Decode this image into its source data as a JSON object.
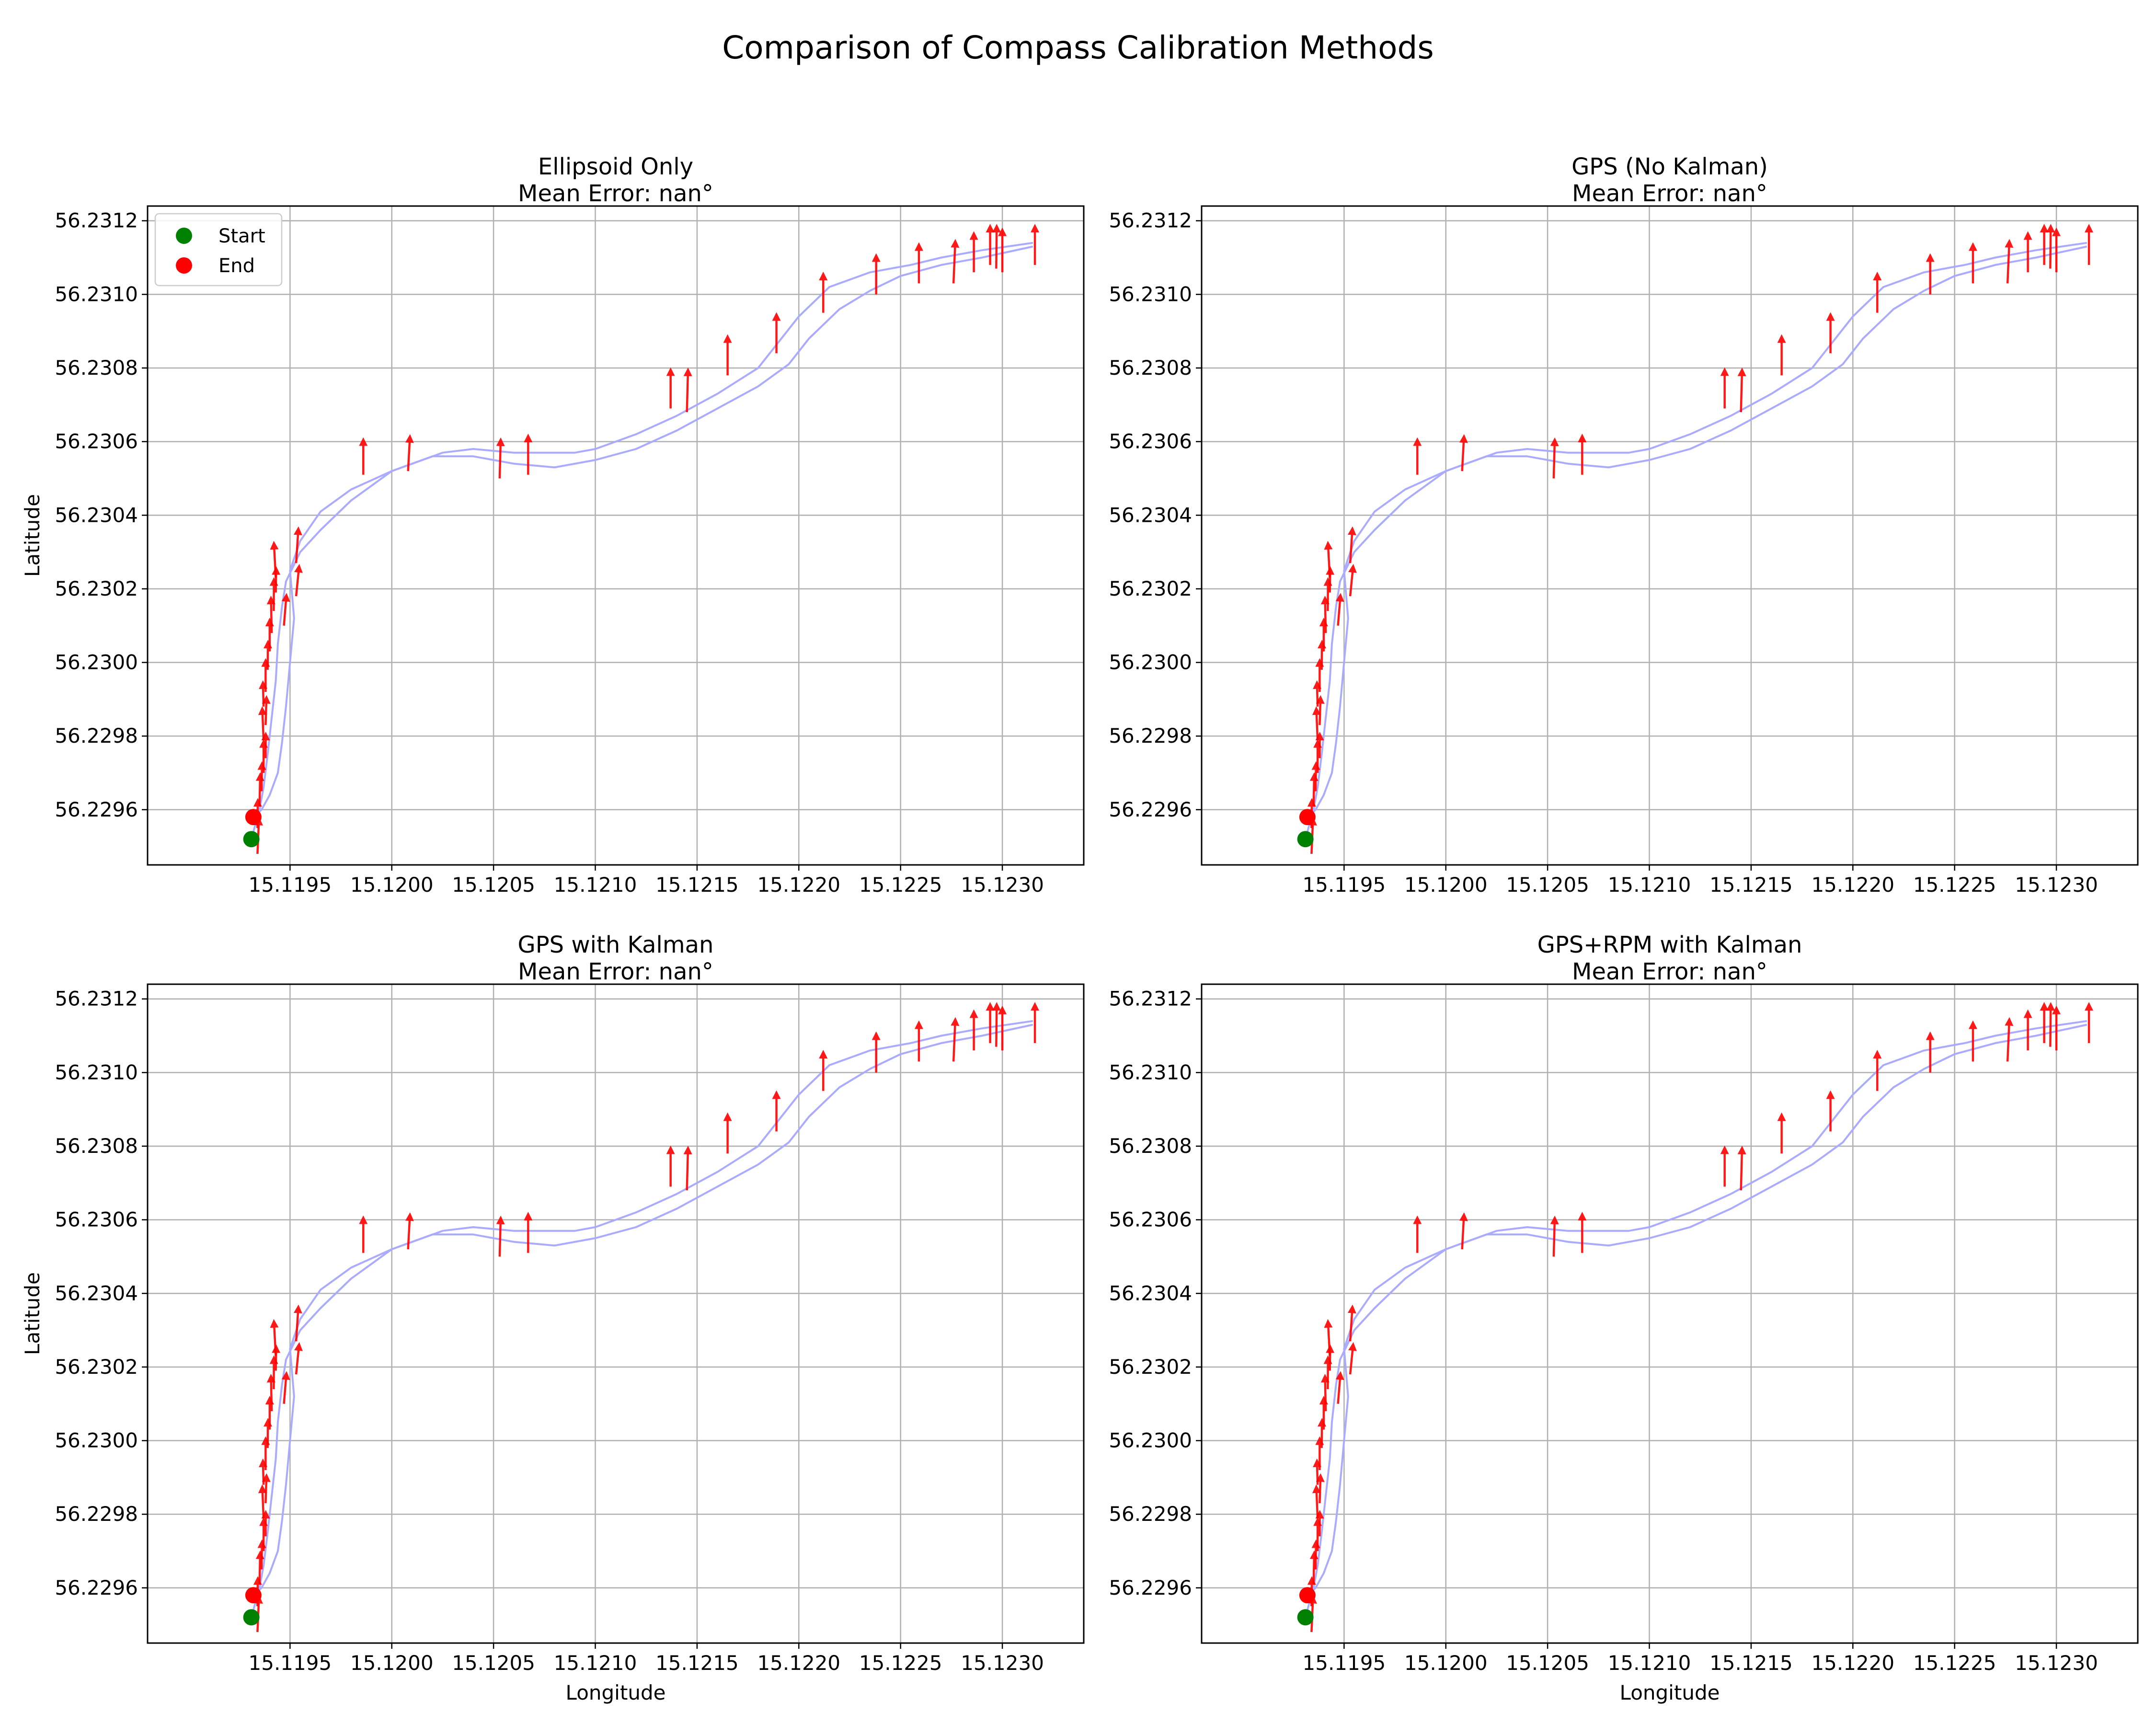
{
  "figure": {
    "title": "Comparison of Compass Calibration Methods"
  },
  "colors": {
    "track": "#aaaaff",
    "arrow": "#ff0000",
    "start": "#008000",
    "end": "#ff0000",
    "grid": "#b0b0b0"
  },
  "chart_data": [
    {
      "type": "scatter",
      "title": "Ellipsoid Only\nMean Error: nan°",
      "xlabel": "",
      "ylabel": "Latitude",
      "xlim": [
        15.1188,
        15.1234
      ],
      "ylim": [
        56.22945,
        56.23124
      ],
      "xticks": [
        "15.1195",
        "15.1200",
        "15.1205",
        "15.1210",
        "15.1215",
        "15.1220",
        "15.1225",
        "15.1230"
      ],
      "yticks": [
        "56.2296",
        "56.2298",
        "56.2300",
        "56.2302",
        "56.2304",
        "56.2306",
        "56.2308",
        "56.2310",
        "56.2312"
      ],
      "grid": true,
      "legend": {
        "placement": "upper-left",
        "entries": [
          "Start",
          "End"
        ]
      }
    },
    {
      "type": "scatter",
      "title": "GPS (No Kalman)\nMean Error: nan°",
      "xlabel": "",
      "ylabel": "",
      "xlim": [
        15.1188,
        15.1234
      ],
      "ylim": [
        56.22945,
        56.23124
      ],
      "xticks": [
        "15.1195",
        "15.1200",
        "15.1205",
        "15.1210",
        "15.1215",
        "15.1220",
        "15.1225",
        "15.1230"
      ],
      "yticks": [
        "56.2296",
        "56.2298",
        "56.2300",
        "56.2302",
        "56.2304",
        "56.2306",
        "56.2308",
        "56.2310",
        "56.2312"
      ],
      "grid": true,
      "legend": null
    },
    {
      "type": "scatter",
      "title": "GPS with Kalman\nMean Error: nan°",
      "xlabel": "Longitude",
      "ylabel": "Latitude",
      "xlim": [
        15.1188,
        15.1234
      ],
      "ylim": [
        56.22945,
        56.23124
      ],
      "xticks": [
        "15.1195",
        "15.1200",
        "15.1205",
        "15.1210",
        "15.1215",
        "15.1220",
        "15.1225",
        "15.1230"
      ],
      "yticks": [
        "56.2296",
        "56.2298",
        "56.2300",
        "56.2302",
        "56.2304",
        "56.2306",
        "56.2308",
        "56.2310",
        "56.2312"
      ],
      "grid": true,
      "legend": null
    },
    {
      "type": "scatter",
      "title": "GPS+RPM with Kalman\nMean Error: nan°",
      "xlabel": "Longitude",
      "ylabel": "",
      "xlim": [
        15.1188,
        15.1234
      ],
      "ylim": [
        56.22945,
        56.23124
      ],
      "xticks": [
        "15.1195",
        "15.1200",
        "15.1205",
        "15.1210",
        "15.1215",
        "15.1220",
        "15.1225",
        "15.1230"
      ],
      "yticks": [
        "56.2296",
        "56.2298",
        "56.2300",
        "56.2302",
        "56.2304",
        "56.2306",
        "56.2308",
        "56.2310",
        "56.2312"
      ],
      "grid": true,
      "legend": null
    }
  ],
  "track": {
    "start": [
      15.11931,
      56.22952
    ],
    "end": [
      15.11932,
      56.22958
    ],
    "outbound": [
      [
        15.11931,
        56.22952
      ],
      [
        15.11935,
        56.2296
      ],
      [
        15.11937,
        56.22966
      ],
      [
        15.11939,
        56.22975
      ],
      [
        15.11941,
        56.22985
      ],
      [
        15.11943,
        56.22995
      ],
      [
        15.11944,
        56.23005
      ],
      [
        15.11946,
        56.23015
      ],
      [
        15.11948,
        56.23022
      ],
      [
        15.11955,
        56.2303
      ],
      [
        15.11965,
        56.23036
      ],
      [
        15.1198,
        56.23044
      ],
      [
        15.12,
        56.23052
      ],
      [
        15.12025,
        56.23057
      ],
      [
        15.1204,
        56.23058
      ],
      [
        15.1206,
        56.23057
      ],
      [
        15.1208,
        56.23057
      ],
      [
        15.1209,
        56.23057
      ],
      [
        15.121,
        56.23058
      ],
      [
        15.1212,
        56.23062
      ],
      [
        15.1214,
        56.23067
      ],
      [
        15.1216,
        56.23073
      ],
      [
        15.1218,
        56.2308
      ],
      [
        15.1219,
        56.23087
      ],
      [
        15.122,
        56.23094
      ],
      [
        15.12215,
        56.23102
      ],
      [
        15.12235,
        56.23106
      ],
      [
        15.12255,
        56.23108
      ],
      [
        15.1227,
        56.2311
      ],
      [
        15.1229,
        56.23112
      ],
      [
        15.12315,
        56.23114
      ]
    ],
    "return": [
      [
        15.12315,
        56.23113
      ],
      [
        15.1229,
        56.2311
      ],
      [
        15.1227,
        56.23108
      ],
      [
        15.1225,
        56.23105
      ],
      [
        15.12235,
        56.23101
      ],
      [
        15.1222,
        56.23096
      ],
      [
        15.12205,
        56.23088
      ],
      [
        15.12195,
        56.23081
      ],
      [
        15.1218,
        56.23075
      ],
      [
        15.1216,
        56.23069
      ],
      [
        15.1214,
        56.23063
      ],
      [
        15.1212,
        56.23058
      ],
      [
        15.121,
        56.23055
      ],
      [
        15.1208,
        56.23053
      ],
      [
        15.1206,
        56.23054
      ],
      [
        15.1204,
        56.23056
      ],
      [
        15.1202,
        56.23056
      ],
      [
        15.12,
        56.23052
      ],
      [
        15.1198,
        56.23047
      ],
      [
        15.11965,
        56.23041
      ],
      [
        15.11955,
        56.23033
      ],
      [
        15.1195,
        56.23025
      ],
      [
        15.11952,
        56.23012
      ],
      [
        15.1195,
        56.23
      ],
      [
        15.11948,
        56.22988
      ],
      [
        15.11946,
        56.22978
      ],
      [
        15.11944,
        56.2297
      ],
      [
        15.1194,
        56.22964
      ],
      [
        15.11936,
        56.2296
      ],
      [
        15.11932,
        56.22958
      ]
    ]
  },
  "arrows": [
    [
      15.11934,
      56.22948,
      8,
      9e-05
    ],
    [
      15.11934,
      56.22955,
      2,
      7e-05
    ],
    [
      15.11935,
      56.22961,
      4,
      8e-05
    ],
    [
      15.11936,
      56.22965,
      3,
      7e-05
    ],
    [
      15.11937,
      56.2297,
      0,
      8e-05
    ],
    [
      15.11938,
      56.22974,
      1,
      6e-05
    ],
    [
      15.11937,
      56.22979,
      -8,
      8e-05
    ],
    [
      15.11938,
      56.22983,
      6,
      7e-05
    ],
    [
      15.11937,
      56.22988,
      -5,
      6e-05
    ],
    [
      15.11938,
      56.22992,
      0,
      8e-05
    ],
    [
      15.11939,
      56.22998,
      2,
      7e-05
    ],
    [
      15.1194,
      56.23003,
      0,
      8e-05
    ],
    [
      15.11941,
      56.23008,
      -4,
      9e-05
    ],
    [
      15.11942,
      56.23014,
      1,
      8e-05
    ],
    [
      15.11943,
      56.23019,
      3,
      6e-05
    ],
    [
      15.11943,
      56.23023,
      -10,
      9e-05
    ],
    [
      15.11947,
      56.2301,
      15,
      8e-05
    ],
    [
      15.11953,
      56.23018,
      18,
      8e-05
    ],
    [
      15.11953,
      56.23027,
      12,
      9e-05
    ],
    [
      15.11986,
      56.23051,
      0,
      9e-05
    ],
    [
      15.12008,
      56.23052,
      10,
      9e-05
    ],
    [
      15.12053,
      56.2305,
      5,
      0.0001
    ],
    [
      15.12067,
      56.23051,
      0,
      0.0001
    ],
    [
      15.12137,
      56.23069,
      0,
      0.0001
    ],
    [
      15.12145,
      56.23068,
      5,
      0.00011
    ],
    [
      15.12165,
      56.23078,
      0,
      0.0001
    ],
    [
      15.12189,
      56.23084,
      0,
      0.0001
    ],
    [
      15.12212,
      56.23095,
      0,
      0.0001
    ],
    [
      15.12238,
      56.231,
      0,
      0.0001
    ],
    [
      15.12259,
      56.23103,
      0,
      0.0001
    ],
    [
      15.12276,
      56.23103,
      8,
      0.00011
    ],
    [
      15.12286,
      56.23106,
      0,
      0.0001
    ],
    [
      15.12294,
      56.23108,
      0,
      0.0001
    ],
    [
      15.12297,
      56.23107,
      2,
      0.00011
    ],
    [
      15.123,
      56.23106,
      0,
      0.00011
    ],
    [
      15.12316,
      56.23108,
      0,
      0.0001
    ]
  ]
}
